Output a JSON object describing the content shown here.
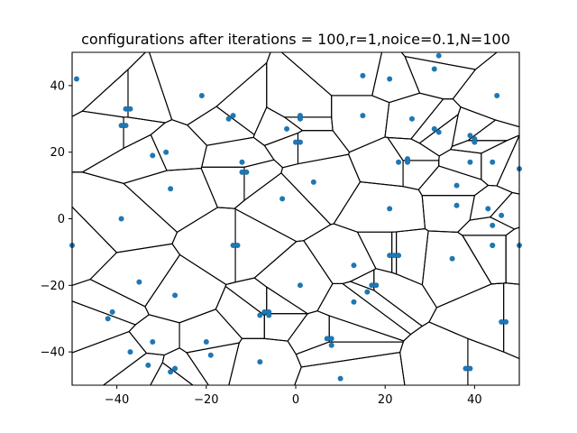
{
  "chart_data": {
    "type": "scatter",
    "title": "configurations after iterations = 100,r=1,noice=0.1,N=100",
    "xlabel": "",
    "ylabel": "",
    "xlim": [
      -50,
      50
    ],
    "ylim": [
      -50,
      50
    ],
    "xticks": [
      -40,
      -20,
      0,
      20,
      40
    ],
    "yticks": [
      -40,
      -20,
      0,
      20,
      40
    ],
    "xtick_labels": [
      "−40",
      "−20",
      "0",
      "20",
      "40"
    ],
    "ytick_labels": [
      "−40",
      "−20",
      "0",
      "20",
      "40"
    ],
    "grid": false,
    "colors": {
      "points": "#1f77b4",
      "edges": "#000000"
    },
    "overlay": "voronoi-diagram",
    "points": [
      [
        -49,
        42
      ],
      [
        -50,
        -8
      ],
      [
        -38,
        33
      ],
      [
        -37,
        33
      ],
      [
        -39,
        28
      ],
      [
        -38,
        28
      ],
      [
        -39,
        0
      ],
      [
        -32,
        19
      ],
      [
        -29,
        20
      ],
      [
        -28,
        9
      ],
      [
        -21,
        37
      ],
      [
        -15,
        30
      ],
      [
        -14,
        31
      ],
      [
        -12,
        17
      ],
      [
        -12,
        14
      ],
      [
        -11,
        14
      ],
      [
        -14,
        -8
      ],
      [
        -13,
        -8
      ],
      [
        -2,
        27
      ],
      [
        0,
        23
      ],
      [
        1,
        23
      ],
      [
        1,
        31
      ],
      [
        1,
        30
      ],
      [
        -3,
        6
      ],
      [
        4,
        11
      ],
      [
        1,
        -20
      ],
      [
        15,
        43
      ],
      [
        15,
        31
      ],
      [
        21,
        42
      ],
      [
        26,
        30
      ],
      [
        31,
        45
      ],
      [
        32,
        49
      ],
      [
        31,
        27
      ],
      [
        32,
        26
      ],
      [
        23,
        17
      ],
      [
        25,
        18
      ],
      [
        25,
        17
      ],
      [
        21,
        3
      ],
      [
        21,
        -11
      ],
      [
        22,
        -11
      ],
      [
        23,
        -11
      ],
      [
        13,
        -14
      ],
      [
        13,
        -25
      ],
      [
        16,
        -22
      ],
      [
        17,
        -20
      ],
      [
        18,
        -20
      ],
      [
        35,
        -12
      ],
      [
        36,
        10
      ],
      [
        36,
        4
      ],
      [
        39,
        25
      ],
      [
        40,
        24
      ],
      [
        40,
        23
      ],
      [
        39,
        17
      ],
      [
        45,
        37
      ],
      [
        44,
        17
      ],
      [
        43,
        3
      ],
      [
        44,
        -2
      ],
      [
        44,
        -8
      ],
      [
        44,
        -8
      ],
      [
        46,
        1
      ],
      [
        50,
        15
      ],
      [
        50,
        -8
      ],
      [
        46,
        -31
      ],
      [
        47,
        -31
      ],
      [
        38,
        -45
      ],
      [
        39,
        -45
      ],
      [
        -35,
        -19
      ],
      [
        -27,
        -23
      ],
      [
        -41,
        -28
      ],
      [
        -42,
        -30
      ],
      [
        -37,
        -40
      ],
      [
        -32,
        -37
      ],
      [
        -33,
        -44
      ],
      [
        -28,
        -46
      ],
      [
        -27,
        -45
      ],
      [
        -20,
        -37
      ],
      [
        -19,
        -41
      ],
      [
        -8,
        -29
      ],
      [
        -7,
        -28
      ],
      [
        -6,
        -28
      ],
      [
        -6,
        -29
      ],
      [
        -8,
        -43
      ],
      [
        7,
        -36
      ],
      [
        8,
        -36
      ],
      [
        8,
        -38
      ],
      [
        10,
        -48
      ]
    ]
  }
}
